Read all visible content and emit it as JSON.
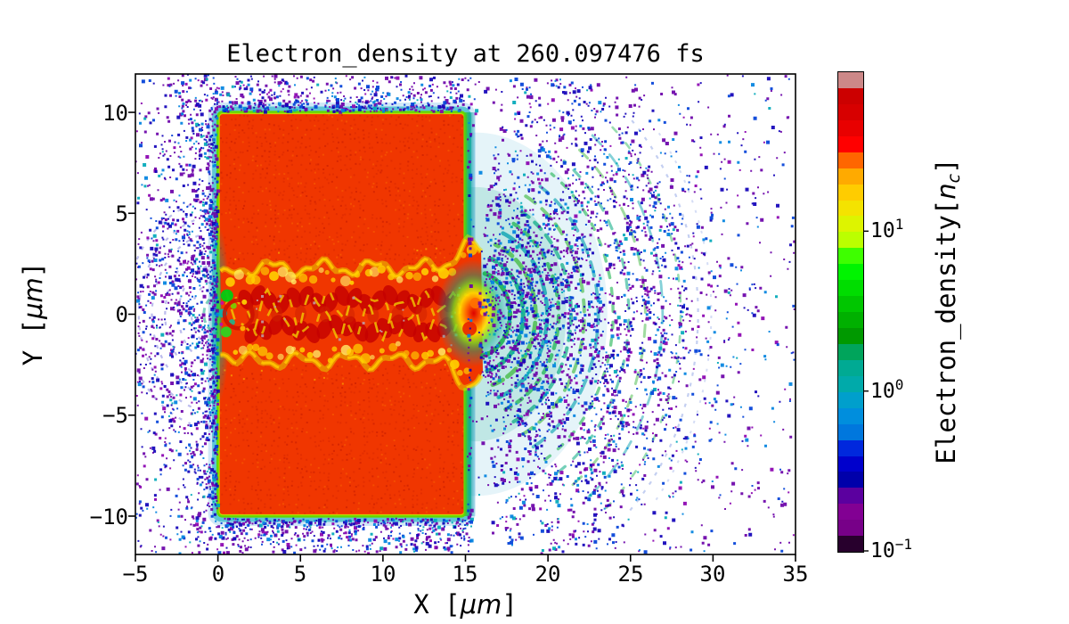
{
  "figure": {
    "title": "Electron_density at 260.097476 fs",
    "xlabel": {
      "prefix": "X [",
      "mu": "μm",
      "suffix": "]"
    },
    "ylabel": {
      "prefix": "Y [",
      "mu": "μm",
      "suffix": "]"
    },
    "x_ticks": [
      "−5",
      "0",
      "5",
      "10",
      "15",
      "20",
      "25",
      "30",
      "35"
    ],
    "y_ticks": [
      "10",
      "5",
      "0",
      "−5",
      "−10"
    ],
    "colorbar": {
      "label": {
        "prefix": "Electron_density[",
        "var": "n",
        "sub": "c",
        "suffix": "]"
      },
      "ticks": [
        {
          "base": "10",
          "exp": "1"
        },
        {
          "base": "10",
          "exp": "0"
        },
        {
          "base": "10",
          "exp": "−1"
        }
      ],
      "n_bands": 30
    }
  },
  "chart_data": {
    "type": "heatmap",
    "title": "Electron_density at 260.097476 fs",
    "xlabel": "X [μm]",
    "ylabel": "Y [μm]",
    "colorbar_label": "Electron_density[n_c]",
    "time_fs": 260.097476,
    "x_range_um": [
      -5,
      35
    ],
    "y_range_um": [
      -11.9,
      11.9
    ],
    "x_ticks_um": [
      -5,
      0,
      5,
      10,
      15,
      20,
      25,
      30,
      35
    ],
    "y_ticks_um": [
      10,
      5,
      0,
      -5,
      -10
    ],
    "color_scale": "log10",
    "color_limits_nc": [
      0.1,
      100
    ],
    "colorbar_ticks_nc": [
      10,
      1,
      0.1
    ],
    "colormap": "nipy_spectral",
    "colormap_stops": [
      [
        0.0,
        "#000000"
      ],
      [
        0.05,
        "#770088"
      ],
      [
        0.1,
        "#880099"
      ],
      [
        0.15,
        "#0000aa"
      ],
      [
        0.2,
        "#0000dd"
      ],
      [
        0.25,
        "#0077dd"
      ],
      [
        0.3,
        "#0099dd"
      ],
      [
        0.35,
        "#00aaaa"
      ],
      [
        0.4,
        "#00aa88"
      ],
      [
        0.45,
        "#009900"
      ],
      [
        0.5,
        "#00bb00"
      ],
      [
        0.55,
        "#00dd00"
      ],
      [
        0.6,
        "#00ff00"
      ],
      [
        0.65,
        "#bbff00"
      ],
      [
        0.7,
        "#eeee00"
      ],
      [
        0.75,
        "#ffcc00"
      ],
      [
        0.8,
        "#ff9900"
      ],
      [
        0.85,
        "#ff0000"
      ],
      [
        0.9,
        "#dd0000"
      ],
      [
        0.95,
        "#cc0000"
      ],
      [
        1.0,
        "#cccccc"
      ]
    ],
    "target": {
      "x_um": [
        0,
        15
      ],
      "y_um": [
        -10,
        10
      ],
      "density_nc": 30
    },
    "channel": {
      "x_um": [
        0,
        15.8
      ],
      "y_halfwidth_um": 2.4,
      "peak_density_nc": 80,
      "filament_density_nc": 15
    },
    "exit_center_um": [
      15.6,
      0
    ],
    "shock_arc_radii_um": [
      2.1,
      2.9,
      3.65,
      4.35,
      5.05,
      5.8,
      6.6,
      7.45,
      8.35,
      9.3,
      10.3,
      11.35,
      12.45
    ],
    "back_arc_radii_um": [
      1.7,
      2.5,
      3.3,
      4.1,
      4.9,
      5.7
    ],
    "halo_density_nc": [
      0.1,
      1.0
    ],
    "seed": 7
  }
}
